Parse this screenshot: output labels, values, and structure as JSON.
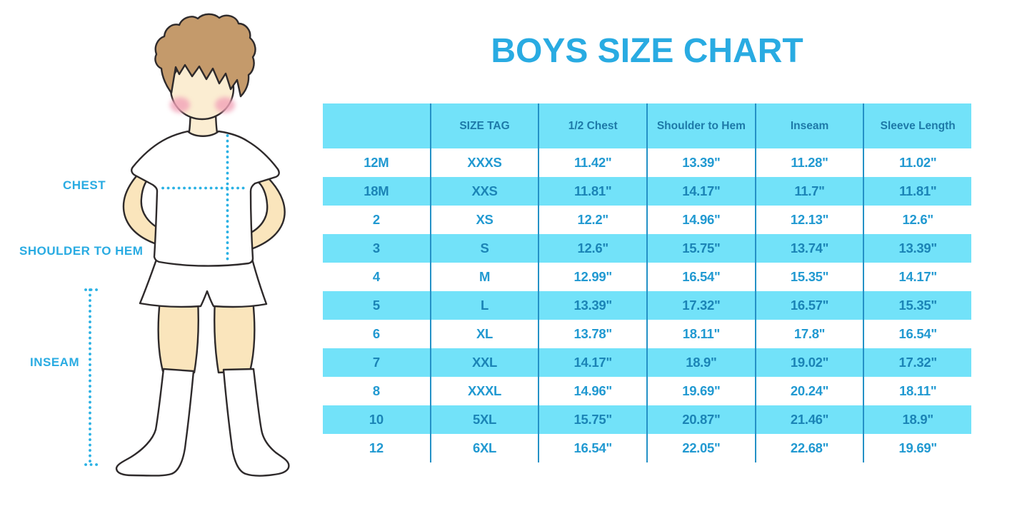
{
  "title": "BOYS SIZE CHART",
  "colors": {
    "accent": "#29ABE2",
    "band": "#72E2F9",
    "line": "#2491C6",
    "header_text": "#1D79A8",
    "data_text": "#2199D1",
    "data_text_blue": "#1B84B6",
    "skin": "#FAE5BC",
    "face": "#FBEDD2",
    "hair": "#C49A6B",
    "outline": "#2E2A2B",
    "blush": "#F2A3B8",
    "dots": "#2AB1E4"
  },
  "figure": {
    "labels": {
      "chest": "CHEST",
      "shoulder_to_hem": "SHOULDER TO HEM",
      "inseam": "INSEAM"
    }
  },
  "chart_data": {
    "type": "table",
    "title": "BOYS SIZE CHART",
    "columns": [
      "",
      "SIZE TAG",
      "1/2 Chest",
      "Shoulder to Hem",
      "Inseam",
      "Sleeve Length"
    ],
    "rows": [
      [
        "12M",
        "XXXS",
        "11.42\"",
        "13.39\"",
        "11.28\"",
        "11.02\""
      ],
      [
        "18M",
        "XXS",
        "11.81\"",
        "14.17\"",
        "11.7\"",
        "11.81\""
      ],
      [
        "2",
        "XS",
        "12.2\"",
        "14.96\"",
        "12.13\"",
        "12.6\""
      ],
      [
        "3",
        "S",
        "12.6\"",
        "15.75\"",
        "13.74\"",
        "13.39\""
      ],
      [
        "4",
        "M",
        "12.99\"",
        "16.54\"",
        "15.35\"",
        "14.17\""
      ],
      [
        "5",
        "L",
        "13.39\"",
        "17.32\"",
        "16.57\"",
        "15.35\""
      ],
      [
        "6",
        "XL",
        "13.78\"",
        "18.11\"",
        "17.8\"",
        "16.54\""
      ],
      [
        "7",
        "XXL",
        "14.17\"",
        "18.9\"",
        "19.02\"",
        "17.32\""
      ],
      [
        "8",
        "XXXL",
        "14.96\"",
        "19.69\"",
        "20.24\"",
        "18.11\""
      ],
      [
        "10",
        "5XL",
        "15.75\"",
        "20.87\"",
        "21.46\"",
        "18.9\""
      ],
      [
        "12",
        "6XL",
        "16.54\"",
        "22.05\"",
        "22.68\"",
        "19.69\""
      ]
    ],
    "striped_row_color": "#72E2F9",
    "header_row_color": "#72E2F9",
    "units": "inches"
  }
}
